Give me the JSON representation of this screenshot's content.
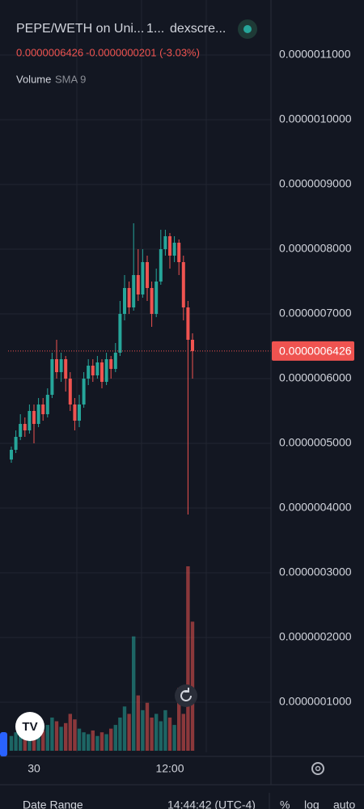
{
  "ui": {
    "header": {
      "title": "PEPE/WETH on Uni...",
      "interval": "1...",
      "source": "dexscre...",
      "price": "0.0000006426",
      "change": "-0.0000000201 (-3.03%)",
      "volume_label": "Volume",
      "sma_label": "SMA 9"
    },
    "price_tag": "0.0000006426",
    "footer": {
      "date_range": "Date Range",
      "time": "14:44:42 (UTC-4)",
      "percent": "%",
      "log": "log",
      "auto": "auto"
    }
  },
  "chart_data": {
    "type": "candlestick",
    "categories": [
      null,
      null,
      null,
      null,
      null,
      "30",
      null,
      null,
      null,
      null,
      null,
      null,
      null,
      null,
      null,
      null,
      null,
      null,
      null,
      null,
      null,
      null,
      null,
      null,
      null,
      null,
      null,
      null,
      null,
      null,
      null,
      null,
      null,
      null,
      null,
      "12:00",
      null,
      null,
      null,
      null,
      null
    ],
    "open": [
      4.75e-07,
      4.9e-07,
      5.1e-07,
      5.3e-07,
      5.2e-07,
      5.5e-07,
      5.3e-07,
      5.6e-07,
      5.45e-07,
      5.75e-07,
      6.3e-07,
      6.1e-07,
      6.3e-07,
      6e-07,
      5.6e-07,
      5.35e-07,
      5.6e-07,
      6e-07,
      6.2e-07,
      6.05e-07,
      6.25e-07,
      5.95e-07,
      6.3e-07,
      6.15e-07,
      6.4e-07,
      7e-07,
      7.4e-07,
      7.1e-07,
      7.6e-07,
      7.3e-07,
      7.8e-07,
      7.4e-07,
      7e-07,
      7.5e-07,
      8e-07,
      8.2e-07,
      7.9e-07,
      8.1e-07,
      7.8e-07,
      7.1e-07,
      6.6e-07
    ],
    "high": [
      4.95e-07,
      5.2e-07,
      5.45e-07,
      5.4e-07,
      5.6e-07,
      5.6e-07,
      5.7e-07,
      5.7e-07,
      5.85e-07,
      6.4e-07,
      6.6e-07,
      6.4e-07,
      6.35e-07,
      6.1e-07,
      5.7e-07,
      5.75e-07,
      6.1e-07,
      6.3e-07,
      6.3e-07,
      6.35e-07,
      6.3e-07,
      6.4e-07,
      6.35e-07,
      6.55e-07,
      7.2e-07,
      7.6e-07,
      7.5e-07,
      8.4e-07,
      8e-07,
      8e-07,
      7.9e-07,
      7.5e-07,
      7.7e-07,
      8.3e-07,
      8.3e-07,
      8.25e-07,
      8.2e-07,
      8.15e-07,
      7.9e-07,
      7.2e-07,
      6.7e-07
    ],
    "low": [
      4.7e-07,
      4.85e-07,
      5.05e-07,
      5.1e-07,
      5.15e-07,
      5e-07,
      5.25e-07,
      5.35e-07,
      5.4e-07,
      5.7e-07,
      6e-07,
      5.95e-07,
      5.8e-07,
      5.5e-07,
      5.2e-07,
      5.25e-07,
      5.55e-07,
      5.9e-07,
      5.95e-07,
      6e-07,
      5.85e-07,
      5.9e-07,
      6e-07,
      6.1e-07,
      6.35e-07,
      6.9e-07,
      7e-07,
      7.05e-07,
      7.2e-07,
      7.25e-07,
      7.2e-07,
      6.8e-07,
      6.95e-07,
      7.45e-07,
      7.9e-07,
      7.7e-07,
      7.8e-07,
      7.6e-07,
      6.9e-07,
      3.9e-07,
      6e-07
    ],
    "close": [
      4.9e-07,
      5.1e-07,
      5.3e-07,
      5.2e-07,
      5.5e-07,
      5.3e-07,
      5.6e-07,
      5.45e-07,
      5.75e-07,
      6.3e-07,
      6.1e-07,
      6.3e-07,
      6e-07,
      5.6e-07,
      5.35e-07,
      5.6e-07,
      6e-07,
      6.2e-07,
      6.05e-07,
      6.25e-07,
      5.95e-07,
      6.3e-07,
      6.15e-07,
      6.4e-07,
      7e-07,
      7.4e-07,
      7.1e-07,
      7.6e-07,
      7.3e-07,
      7.8e-07,
      7.4e-07,
      7e-07,
      7.5e-07,
      8e-07,
      8.2e-07,
      7.9e-07,
      8.1e-07,
      7.8e-07,
      7.1e-07,
      6.6e-07,
      6.426e-07
    ],
    "volume": [
      8,
      10,
      9,
      7,
      10,
      12,
      9,
      11,
      14,
      18,
      16,
      13,
      15,
      20,
      17,
      12,
      10,
      9,
      11,
      8,
      10,
      9,
      12,
      14,
      18,
      24,
      20,
      62,
      30,
      22,
      26,
      18,
      20,
      16,
      22,
      18,
      14,
      34,
      20,
      100,
      70
    ],
    "volume_ylim": [
      0,
      100
    ],
    "current_price": 6.426e-07,
    "up_color": "#26a69a",
    "down_color": "#ef5350",
    "ylim": [
      2.25e-08,
      1.185e-06
    ],
    "yticks": [
      {
        "value": 1e-07,
        "label": "0.0000001000"
      },
      {
        "value": 2e-07,
        "label": "0.0000002000"
      },
      {
        "value": 3e-07,
        "label": "0.0000003000"
      },
      {
        "value": 4e-07,
        "label": "0.0000004000"
      },
      {
        "value": 5e-07,
        "label": "0.0000005000"
      },
      {
        "value": 6e-07,
        "label": "0.0000006000"
      },
      {
        "value": 7e-07,
        "label": "0.0000007000"
      },
      {
        "value": 8e-07,
        "label": "0.0000008000"
      },
      {
        "value": 9e-07,
        "label": "0.0000009000"
      },
      {
        "value": 1e-06,
        "label": "0.0000010000"
      },
      {
        "value": 1.1e-06,
        "label": "0.0000011000"
      }
    ],
    "grid": true
  }
}
